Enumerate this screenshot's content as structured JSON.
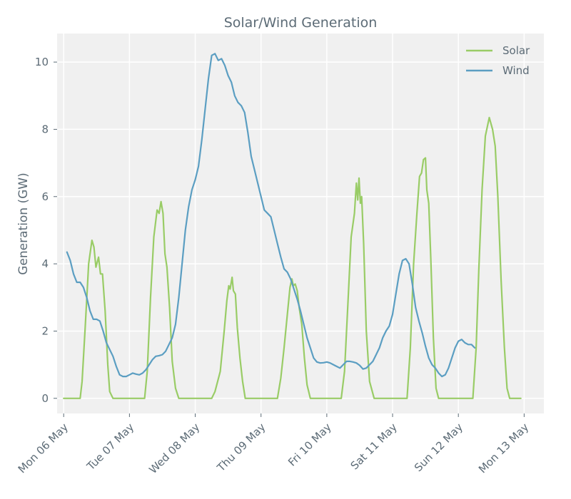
{
  "chart_data": {
    "type": "line",
    "title": "Solar/Wind Generation",
    "xlabel": "",
    "ylabel": "Generation (GW)",
    "ylim": [
      -0.45,
      10.85
    ],
    "xlim": [
      -0.1,
      7.3
    ],
    "grid": true,
    "legend_position": "top-right",
    "x_ticks": [
      {
        "value": 0,
        "label": "Mon 06 May"
      },
      {
        "value": 1,
        "label": "Tue 07 May"
      },
      {
        "value": 2,
        "label": "Wed 08 May"
      },
      {
        "value": 3,
        "label": "Thu 09 May"
      },
      {
        "value": 4,
        "label": "Fri 10 May"
      },
      {
        "value": 5,
        "label": "Sat 11 May"
      },
      {
        "value": 6,
        "label": "Sun 12 May"
      },
      {
        "value": 7,
        "label": "Mon 13 May"
      }
    ],
    "y_ticks": [
      0,
      2,
      4,
      6,
      8,
      10
    ],
    "series": [
      {
        "name": "Solar",
        "color": "#99cc66",
        "points": [
          [
            0.0,
            0
          ],
          [
            0.25,
            0
          ],
          [
            0.28,
            0.5
          ],
          [
            0.33,
            2.2
          ],
          [
            0.38,
            4.0
          ],
          [
            0.43,
            4.7
          ],
          [
            0.46,
            4.5
          ],
          [
            0.49,
            3.9
          ],
          [
            0.53,
            4.2
          ],
          [
            0.56,
            3.7
          ],
          [
            0.59,
            3.7
          ],
          [
            0.63,
            2.6
          ],
          [
            0.67,
            1.0
          ],
          [
            0.7,
            0.2
          ],
          [
            0.75,
            0
          ],
          [
            1.0,
            0
          ],
          [
            1.23,
            0
          ],
          [
            1.27,
            0.8
          ],
          [
            1.32,
            3.0
          ],
          [
            1.37,
            4.8
          ],
          [
            1.42,
            5.6
          ],
          [
            1.45,
            5.5
          ],
          [
            1.48,
            5.85
          ],
          [
            1.51,
            5.5
          ],
          [
            1.54,
            4.3
          ],
          [
            1.57,
            3.9
          ],
          [
            1.61,
            2.7
          ],
          [
            1.65,
            1.1
          ],
          [
            1.7,
            0.3
          ],
          [
            1.75,
            0
          ],
          [
            2.0,
            0
          ],
          [
            2.25,
            0
          ],
          [
            2.3,
            0.2
          ],
          [
            2.38,
            0.8
          ],
          [
            2.44,
            2.0
          ],
          [
            2.48,
            2.9
          ],
          [
            2.51,
            3.35
          ],
          [
            2.53,
            3.25
          ],
          [
            2.56,
            3.6
          ],
          [
            2.58,
            3.2
          ],
          [
            2.61,
            3.1
          ],
          [
            2.64,
            2.1
          ],
          [
            2.68,
            1.2
          ],
          [
            2.72,
            0.5
          ],
          [
            2.76,
            0
          ],
          [
            3.0,
            0
          ],
          [
            3.25,
            0
          ],
          [
            3.3,
            0.6
          ],
          [
            3.35,
            1.5
          ],
          [
            3.4,
            2.5
          ],
          [
            3.44,
            3.3
          ],
          [
            3.47,
            3.55
          ],
          [
            3.49,
            3.35
          ],
          [
            3.52,
            3.4
          ],
          [
            3.55,
            3.2
          ],
          [
            3.58,
            2.7
          ],
          [
            3.62,
            2.2
          ],
          [
            3.66,
            1.2
          ],
          [
            3.7,
            0.4
          ],
          [
            3.75,
            0
          ],
          [
            4.0,
            0
          ],
          [
            4.22,
            0
          ],
          [
            4.27,
            0.8
          ],
          [
            4.32,
            2.8
          ],
          [
            4.37,
            4.8
          ],
          [
            4.42,
            5.5
          ],
          [
            4.45,
            6.4
          ],
          [
            4.47,
            5.9
          ],
          [
            4.49,
            6.55
          ],
          [
            4.51,
            5.8
          ],
          [
            4.53,
            6.0
          ],
          [
            4.56,
            4.6
          ],
          [
            4.6,
            2.0
          ],
          [
            4.65,
            0.5
          ],
          [
            4.72,
            0
          ],
          [
            5.0,
            0
          ],
          [
            5.22,
            0
          ],
          [
            5.27,
            1.5
          ],
          [
            5.32,
            4.0
          ],
          [
            5.37,
            5.5
          ],
          [
            5.41,
            6.6
          ],
          [
            5.44,
            6.7
          ],
          [
            5.47,
            7.1
          ],
          [
            5.5,
            7.15
          ],
          [
            5.52,
            6.2
          ],
          [
            5.55,
            5.8
          ],
          [
            5.58,
            4.2
          ],
          [
            5.62,
            1.8
          ],
          [
            5.66,
            0.3
          ],
          [
            5.7,
            0
          ],
          [
            6.0,
            0
          ],
          [
            6.22,
            0
          ],
          [
            6.27,
            1.5
          ],
          [
            6.31,
            3.8
          ],
          [
            6.36,
            6.2
          ],
          [
            6.41,
            7.8
          ],
          [
            6.47,
            8.35
          ],
          [
            6.52,
            8.0
          ],
          [
            6.56,
            7.5
          ],
          [
            6.6,
            6.0
          ],
          [
            6.65,
            3.5
          ],
          [
            6.7,
            1.5
          ],
          [
            6.74,
            0.3
          ],
          [
            6.78,
            0
          ],
          [
            6.95,
            0
          ]
        ]
      },
      {
        "name": "Wind",
        "color": "#5b9ec2",
        "points": [
          [
            0.05,
            4.35
          ],
          [
            0.1,
            4.1
          ],
          [
            0.15,
            3.7
          ],
          [
            0.2,
            3.45
          ],
          [
            0.25,
            3.45
          ],
          [
            0.3,
            3.3
          ],
          [
            0.35,
            3.0
          ],
          [
            0.4,
            2.6
          ],
          [
            0.45,
            2.35
          ],
          [
            0.5,
            2.35
          ],
          [
            0.55,
            2.3
          ],
          [
            0.6,
            2.0
          ],
          [
            0.65,
            1.65
          ],
          [
            0.7,
            1.45
          ],
          [
            0.75,
            1.25
          ],
          [
            0.8,
            0.95
          ],
          [
            0.85,
            0.7
          ],
          [
            0.9,
            0.65
          ],
          [
            0.95,
            0.65
          ],
          [
            1.0,
            0.7
          ],
          [
            1.05,
            0.75
          ],
          [
            1.1,
            0.72
          ],
          [
            1.15,
            0.7
          ],
          [
            1.2,
            0.75
          ],
          [
            1.25,
            0.85
          ],
          [
            1.3,
            1.0
          ],
          [
            1.35,
            1.15
          ],
          [
            1.4,
            1.25
          ],
          [
            1.45,
            1.27
          ],
          [
            1.5,
            1.3
          ],
          [
            1.55,
            1.4
          ],
          [
            1.6,
            1.6
          ],
          [
            1.65,
            1.8
          ],
          [
            1.7,
            2.2
          ],
          [
            1.75,
            3.0
          ],
          [
            1.8,
            4.0
          ],
          [
            1.85,
            5.0
          ],
          [
            1.9,
            5.7
          ],
          [
            1.95,
            6.2
          ],
          [
            2.0,
            6.5
          ],
          [
            2.05,
            6.9
          ],
          [
            2.1,
            7.7
          ],
          [
            2.15,
            8.6
          ],
          [
            2.2,
            9.5
          ],
          [
            2.25,
            10.2
          ],
          [
            2.3,
            10.25
          ],
          [
            2.35,
            10.05
          ],
          [
            2.4,
            10.1
          ],
          [
            2.45,
            9.9
          ],
          [
            2.5,
            9.6
          ],
          [
            2.55,
            9.4
          ],
          [
            2.6,
            9.0
          ],
          [
            2.65,
            8.8
          ],
          [
            2.7,
            8.7
          ],
          [
            2.75,
            8.5
          ],
          [
            2.8,
            7.9
          ],
          [
            2.85,
            7.2
          ],
          [
            2.9,
            6.8
          ],
          [
            2.95,
            6.4
          ],
          [
            3.0,
            6.0
          ],
          [
            3.05,
            5.6
          ],
          [
            3.1,
            5.5
          ],
          [
            3.15,
            5.4
          ],
          [
            3.2,
            5.0
          ],
          [
            3.25,
            4.6
          ],
          [
            3.3,
            4.2
          ],
          [
            3.35,
            3.85
          ],
          [
            3.4,
            3.75
          ],
          [
            3.45,
            3.55
          ],
          [
            3.5,
            3.25
          ],
          [
            3.55,
            2.95
          ],
          [
            3.6,
            2.6
          ],
          [
            3.65,
            2.2
          ],
          [
            3.7,
            1.8
          ],
          [
            3.75,
            1.5
          ],
          [
            3.8,
            1.2
          ],
          [
            3.85,
            1.08
          ],
          [
            3.9,
            1.05
          ],
          [
            3.95,
            1.06
          ],
          [
            4.0,
            1.08
          ],
          [
            4.05,
            1.05
          ],
          [
            4.1,
            1.0
          ],
          [
            4.15,
            0.95
          ],
          [
            4.2,
            0.9
          ],
          [
            4.25,
            1.0
          ],
          [
            4.3,
            1.1
          ],
          [
            4.35,
            1.1
          ],
          [
            4.4,
            1.08
          ],
          [
            4.45,
            1.05
          ],
          [
            4.5,
            0.98
          ],
          [
            4.55,
            0.87
          ],
          [
            4.6,
            0.9
          ],
          [
            4.65,
            1.0
          ],
          [
            4.7,
            1.1
          ],
          [
            4.75,
            1.3
          ],
          [
            4.8,
            1.5
          ],
          [
            4.85,
            1.8
          ],
          [
            4.9,
            2.0
          ],
          [
            4.95,
            2.15
          ],
          [
            5.0,
            2.5
          ],
          [
            5.05,
            3.1
          ],
          [
            5.1,
            3.7
          ],
          [
            5.15,
            4.1
          ],
          [
            5.2,
            4.15
          ],
          [
            5.25,
            4.0
          ],
          [
            5.3,
            3.4
          ],
          [
            5.35,
            2.7
          ],
          [
            5.4,
            2.3
          ],
          [
            5.45,
            1.95
          ],
          [
            5.5,
            1.55
          ],
          [
            5.55,
            1.2
          ],
          [
            5.6,
            1.0
          ],
          [
            5.65,
            0.9
          ],
          [
            5.7,
            0.75
          ],
          [
            5.75,
            0.65
          ],
          [
            5.8,
            0.7
          ],
          [
            5.85,
            0.9
          ],
          [
            5.9,
            1.2
          ],
          [
            5.95,
            1.5
          ],
          [
            6.0,
            1.7
          ],
          [
            6.05,
            1.75
          ],
          [
            6.1,
            1.65
          ],
          [
            6.15,
            1.6
          ],
          [
            6.2,
            1.6
          ],
          [
            6.25,
            1.5
          ]
        ]
      }
    ]
  }
}
